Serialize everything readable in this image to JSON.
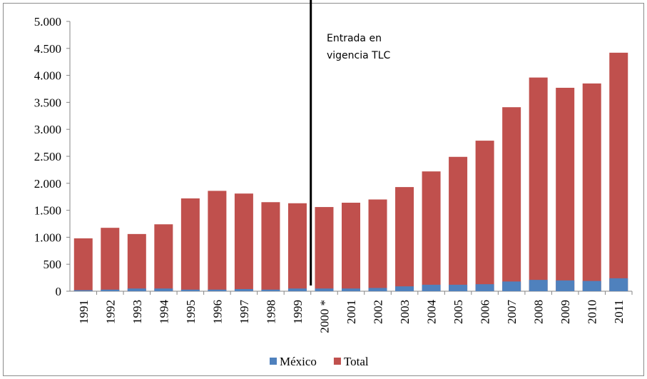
{
  "chart_data": {
    "type": "bar",
    "annotation": "Entrada en vigencia TLC",
    "categories": [
      "1991",
      "1992",
      "1993",
      "1994",
      "1995",
      "1996",
      "1997",
      "1998",
      "1999",
      "2000 *",
      "2001",
      "2002",
      "2003",
      "2004",
      "2005",
      "2006",
      "2007",
      "2008",
      "2009",
      "2010",
      "2011"
    ],
    "series": [
      {
        "name": "Total",
        "color": "#c0504d",
        "values": [
          980,
          1175,
          1060,
          1240,
          1720,
          1860,
          1810,
          1650,
          1630,
          1560,
          1640,
          1700,
          1930,
          2220,
          2490,
          2790,
          3410,
          3960,
          3770,
          3850,
          4420
        ]
      },
      {
        "name": "México",
        "color": "#4f81bd",
        "values": [
          20,
          30,
          50,
          50,
          30,
          30,
          40,
          30,
          50,
          50,
          50,
          60,
          90,
          120,
          120,
          130,
          180,
          210,
          200,
          190,
          240
        ]
      }
    ],
    "legend_order": [
      1,
      0
    ],
    "ylim": [
      0,
      5000
    ],
    "yticks": [
      0,
      500,
      {
        "value": 1000,
        "label": "1.000"
      },
      {
        "value": 1500,
        "label": "1.500"
      },
      {
        "value": 2000,
        "label": "2.000"
      },
      {
        "value": 2500,
        "label": "2.500"
      },
      {
        "value": 3000,
        "label": "3.000"
      },
      {
        "value": 3500,
        "label": "3.500"
      },
      {
        "value": 4000,
        "label": "4.000"
      },
      {
        "value": 4500,
        "label": "4.500"
      },
      {
        "value": 5000,
        "label": "5.000"
      }
    ],
    "grid": false
  }
}
